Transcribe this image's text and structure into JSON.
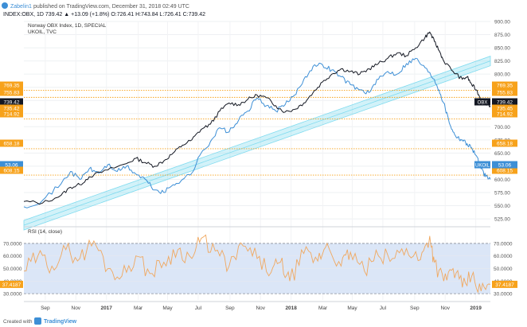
{
  "header": {
    "author": "Zabelin1",
    "published": "published on TradingView.com, December 31, 2018 02:49 UTC",
    "ticker_line": "INDEX:OBX, 1D  739.42  ▲ +13.09 (+1.8%)  O:726.41  H:743.84  L:726.41  C:739.42"
  },
  "legend": {
    "main": "Norway OBX Index, 1D, SPECIAL",
    "secondary": "UKOIL, TVC",
    "rsi": "RSI (14, close)"
  },
  "footer": {
    "brand": "TradingView",
    "prefix": "Created with"
  },
  "colors": {
    "obx": "#131722",
    "ukoil": "#3d8fd6",
    "level": "#f7a21b",
    "channel": "#7fdbef",
    "rsi_line": "#f0a860",
    "rsi_band": "#dbe6f7",
    "badge_blue": "#3d8fd6",
    "badge_dark": "#131722",
    "badge_orange": "#f7a21b"
  },
  "chart_data": [
    {
      "type": "line",
      "name": "price",
      "x_tick_labels": [
        "Sep",
        "Nov",
        "2017",
        "Mar",
        "May",
        "Jul",
        "Sep",
        "Nov",
        "2018",
        "Mar",
        "May",
        "Jul",
        "Sep",
        "Nov",
        "2019"
      ],
      "x_tick_index": [
        0.035,
        0.085,
        0.135,
        0.187,
        0.235,
        0.285,
        0.337,
        0.387,
        0.437,
        0.489,
        0.537,
        0.587,
        0.639,
        0.689,
        0.739
      ],
      "y_range": [
        510,
        900
      ],
      "y_ticks": [
        525,
        550,
        575,
        600,
        625,
        650,
        675,
        700,
        725,
        750,
        775,
        800,
        825,
        850,
        875,
        900
      ],
      "series": [
        {
          "name": "Norway OBX Index",
          "values": [
            [
              0,
              558
            ],
            [
              0.04,
              555
            ],
            [
              0.08,
              570
            ],
            [
              0.1,
              585
            ],
            [
              0.12,
              590
            ],
            [
              0.14,
              605
            ],
            [
              0.18,
              618
            ],
            [
              0.22,
              630
            ],
            [
              0.24,
              640
            ],
            [
              0.26,
              632
            ],
            [
              0.28,
              625
            ],
            [
              0.3,
              635
            ],
            [
              0.32,
              650
            ],
            [
              0.34,
              665
            ],
            [
              0.36,
              675
            ],
            [
              0.38,
              695
            ],
            [
              0.4,
              705
            ],
            [
              0.42,
              730
            ],
            [
              0.44,
              745
            ],
            [
              0.46,
              742
            ],
            [
              0.48,
              752
            ],
            [
              0.5,
              760
            ],
            [
              0.52,
              755
            ],
            [
              0.54,
              740
            ],
            [
              0.56,
              728
            ],
            [
              0.58,
              733
            ],
            [
              0.6,
              745
            ],
            [
              0.62,
              765
            ],
            [
              0.64,
              785
            ],
            [
              0.66,
              800
            ],
            [
              0.68,
              810
            ],
            [
              0.7,
              805
            ],
            [
              0.72,
              800
            ],
            [
              0.74,
              810
            ],
            [
              0.76,
              820
            ],
            [
              0.78,
              830
            ],
            [
              0.8,
              840
            ],
            [
              0.82,
              835
            ],
            [
              0.84,
              850
            ],
            [
              0.86,
              870
            ],
            [
              0.87,
              880
            ],
            [
              0.88,
              862
            ],
            [
              0.89,
              845
            ],
            [
              0.9,
              825
            ],
            [
              0.92,
              805
            ],
            [
              0.94,
              790
            ],
            [
              0.95,
              795
            ],
            [
              0.96,
              780
            ],
            [
              0.97,
              770
            ],
            [
              0.98,
              752
            ],
            [
              0.99,
              745
            ],
            [
              1.0,
              739.42
            ]
          ]
        },
        {
          "name": "UKOIL",
          "values": [
            [
              0,
              548
            ],
            [
              0.04,
              560
            ],
            [
              0.08,
              592
            ],
            [
              0.1,
              615
            ],
            [
              0.12,
              600
            ],
            [
              0.14,
              620
            ],
            [
              0.16,
              612
            ],
            [
              0.18,
              628
            ],
            [
              0.2,
              615
            ],
            [
              0.22,
              625
            ],
            [
              0.24,
              610
            ],
            [
              0.26,
              600
            ],
            [
              0.28,
              580
            ],
            [
              0.3,
              575
            ],
            [
              0.32,
              590
            ],
            [
              0.34,
              600
            ],
            [
              0.36,
              612
            ],
            [
              0.38,
              650
            ],
            [
              0.4,
              672
            ],
            [
              0.42,
              698
            ],
            [
              0.44,
              690
            ],
            [
              0.46,
              712
            ],
            [
              0.48,
              730
            ],
            [
              0.5,
              755
            ],
            [
              0.52,
              740
            ],
            [
              0.54,
              730
            ],
            [
              0.56,
              742
            ],
            [
              0.58,
              760
            ],
            [
              0.6,
              790
            ],
            [
              0.62,
              815
            ],
            [
              0.64,
              818
            ],
            [
              0.66,
              808
            ],
            [
              0.68,
              795
            ],
            [
              0.7,
              780
            ],
            [
              0.72,
              770
            ],
            [
              0.74,
              765
            ],
            [
              0.76,
              790
            ],
            [
              0.78,
              805
            ],
            [
              0.8,
              800
            ],
            [
              0.82,
              820
            ],
            [
              0.84,
              830
            ],
            [
              0.86,
              812
            ],
            [
              0.88,
              790
            ],
            [
              0.89,
              770
            ],
            [
              0.9,
              745
            ],
            [
              0.91,
              715
            ],
            [
              0.92,
              690
            ],
            [
              0.93,
              680
            ],
            [
              0.94,
              675
            ],
            [
              0.95,
              668
            ],
            [
              0.96,
              660
            ],
            [
              0.97,
              645
            ],
            [
              0.98,
              620
            ],
            [
              0.99,
              605
            ],
            [
              1.0,
              600
            ]
          ]
        }
      ],
      "horizontal_levels": [
        769.35,
        755.83,
        714.92,
        658.18,
        608.15
      ],
      "level_labels": [
        "769.35",
        "755.83",
        "714.92",
        "658.18",
        "608.15"
      ],
      "last_values": [
        {
          "label": "OBX",
          "value": "739.42"
        },
        {
          "label": "UKOIL",
          "value": "53.06"
        }
      ],
      "left_badges": [
        {
          "value": "769.35"
        },
        {
          "value": "755.83"
        },
        {
          "value": "739.42"
        },
        {
          "value": "735.42"
        },
        {
          "value": "714.92"
        },
        {
          "value": "658.18"
        },
        {
          "value": "53.06"
        },
        {
          "value": "608.15"
        }
      ],
      "channel": {
        "from": [
          0,
          513
        ],
        "to": [
          1.0,
          825
        ],
        "width": 12
      },
      "right_badges": [
        {
          "value": "769.35"
        },
        {
          "value": "755.83"
        },
        {
          "value": "739.42"
        },
        {
          "value": "735.45"
        },
        {
          "value": "714.92"
        },
        {
          "value": "658.18"
        },
        {
          "value": "608.15"
        }
      ]
    },
    {
      "type": "line",
      "name": "rsi",
      "title": "RSI (14, close)",
      "y_range": [
        25,
        82
      ],
      "y_ticks": [
        30,
        40,
        50,
        60,
        70
      ],
      "y_tick_labels": [
        "30.0000",
        "40.0000",
        "50.0000",
        "60.0000",
        "70.0000"
      ],
      "band": [
        30,
        70
      ],
      "last_value": "37.4187",
      "series": [
        {
          "name": "RSI",
          "values": [
            [
              0,
              48
            ],
            [
              0.03,
              60
            ],
            [
              0.06,
              52
            ],
            [
              0.09,
              65
            ],
            [
              0.12,
              58
            ],
            [
              0.15,
              72
            ],
            [
              0.18,
              50
            ],
            [
              0.21,
              44
            ],
            [
              0.24,
              60
            ],
            [
              0.27,
              46
            ],
            [
              0.3,
              55
            ],
            [
              0.33,
              65
            ],
            [
              0.36,
              58
            ],
            [
              0.38,
              74
            ],
            [
              0.41,
              64
            ],
            [
              0.44,
              52
            ],
            [
              0.47,
              68
            ],
            [
              0.5,
              58
            ],
            [
              0.53,
              47
            ],
            [
              0.55,
              55
            ],
            [
              0.57,
              40
            ],
            [
              0.6,
              62
            ],
            [
              0.63,
              56
            ],
            [
              0.65,
              70
            ],
            [
              0.68,
              52
            ],
            [
              0.7,
              63
            ],
            [
              0.73,
              48
            ],
            [
              0.76,
              60
            ],
            [
              0.79,
              58
            ],
            [
              0.82,
              66
            ],
            [
              0.85,
              57
            ],
            [
              0.87,
              76
            ],
            [
              0.88,
              55
            ],
            [
              0.9,
              40
            ],
            [
              0.92,
              50
            ],
            [
              0.94,
              35
            ],
            [
              0.96,
              44
            ],
            [
              0.98,
              32
            ],
            [
              1.0,
              37.42
            ]
          ]
        }
      ]
    }
  ]
}
